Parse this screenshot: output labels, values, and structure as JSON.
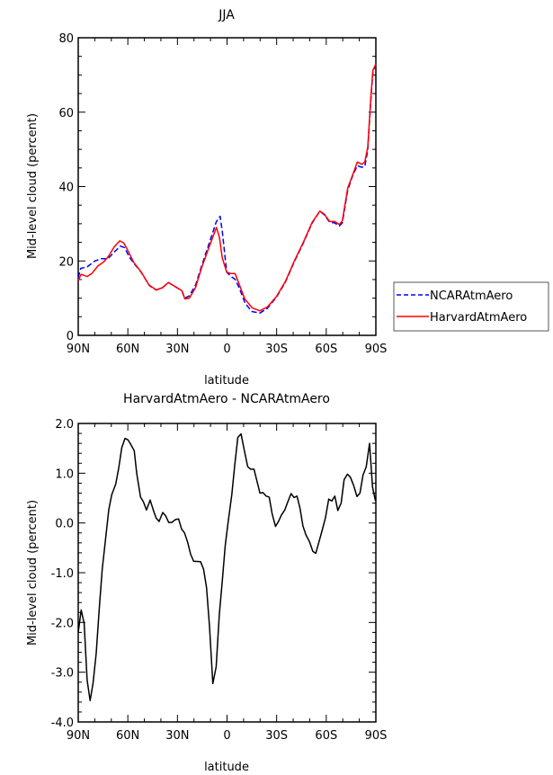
{
  "chart_data": [
    {
      "type": "line",
      "title": "JJA",
      "xlabel": "latitude",
      "ylabel": "Mid-level cloud (percent)",
      "xlim": [
        90,
        -90
      ],
      "ylim": [
        0,
        80
      ],
      "xticks": [
        90,
        60,
        30,
        0,
        -30,
        -60,
        -90
      ],
      "xtick_labels": [
        "90N",
        "60N",
        "30N",
        "0",
        "30S",
        "60S",
        "90S"
      ],
      "yticks": [
        0,
        20,
        40,
        60,
        80
      ],
      "ytick_labels": [
        "0",
        "20",
        "40",
        "60",
        "80"
      ],
      "legend": "outside-right",
      "series": [
        {
          "name": "NCARAtmAero",
          "color": "#0000ff",
          "dash": "dashed",
          "lat": [
            90,
            88.5,
            84.6,
            80,
            76,
            72,
            68,
            64.5,
            62,
            59,
            56,
            52,
            47,
            43,
            39,
            35.5,
            31,
            27.3,
            25.5,
            22.8,
            19,
            15.5,
            11,
            6.5,
            4.2,
            2.9,
            0.2,
            -2.5,
            -5,
            -7.5,
            -11,
            -15,
            -19.8,
            -24.3,
            -29.8,
            -35.2,
            -40.7,
            -46.1,
            -51.5,
            -56.1,
            -58.8,
            -62.1,
            -65.1,
            -67.9,
            -69.7,
            -73,
            -76,
            -78.8,
            -81.5,
            -83.3,
            -85.1,
            -87,
            -88.2,
            -90
          ],
          "values": [
            15.5,
            18.0,
            18.4,
            20.0,
            20.6,
            20.6,
            22.5,
            24.0,
            23.6,
            21.0,
            19.2,
            17.0,
            13.4,
            12.2,
            12.8,
            14.2,
            13.0,
            12.0,
            10.0,
            10.6,
            13.6,
            18.5,
            24.5,
            30.5,
            32.0,
            28.0,
            17.0,
            15.8,
            15.0,
            12.6,
            8.6,
            6.4,
            6.0,
            7.2,
            10.2,
            14.2,
            19.8,
            24.8,
            30.2,
            33.4,
            32.4,
            30.4,
            30.2,
            29.4,
            30.2,
            39.0,
            43.0,
            45.6,
            45.2,
            45.4,
            49.8,
            63.5,
            70.8,
            72.8
          ]
        },
        {
          "name": "HarvardAtmAero",
          "color": "#ff0000",
          "dash": "solid",
          "lat": [
            90,
            88.2,
            84.6,
            81.8,
            78.2,
            74.5,
            71.8,
            68.2,
            64.9,
            62.4,
            60,
            56.4,
            51.8,
            47.3,
            42.8,
            39.1,
            35.5,
            31,
            27.3,
            25.5,
            22.8,
            19.1,
            15.5,
            11,
            6.4,
            4.6,
            2.9,
            0.2,
            -2.5,
            -4.9,
            -7.1,
            -10.7,
            -15.2,
            -19.8,
            -24.3,
            -29.8,
            -35.2,
            -40.7,
            -46.1,
            -51.5,
            -56.1,
            -58.8,
            -62.1,
            -65.1,
            -67.9,
            -69.7,
            -73,
            -76,
            -78.8,
            -81.5,
            -83.3,
            -85.1,
            -87,
            -88.2,
            -90
          ],
          "values": [
            14.8,
            16.4,
            15.8,
            16.6,
            18.6,
            19.8,
            21.2,
            23.8,
            25.4,
            24.8,
            22.8,
            19.6,
            17.0,
            13.6,
            12.2,
            12.8,
            14.2,
            13.0,
            12.0,
            9.8,
            10.0,
            12.8,
            18.0,
            23.6,
            29.0,
            26.4,
            20.8,
            17.0,
            16.6,
            16.6,
            14.0,
            9.8,
            7.4,
            6.6,
            7.6,
            10.4,
            14.4,
            20.0,
            25.0,
            30.4,
            33.4,
            32.6,
            30.6,
            30.6,
            29.8,
            30.8,
            39.6,
            43.2,
            46.6,
            46.0,
            46.6,
            50.6,
            64.3,
            71.2,
            73.0
          ]
        }
      ]
    },
    {
      "type": "line",
      "title": "HarvardAtmAero - NCARAtmAero",
      "xlabel": "latitude",
      "ylabel": "Mid-level cloud (percent)",
      "xlim": [
        90,
        -90
      ],
      "ylim": [
        -4.0,
        2.0
      ],
      "xticks": [
        90,
        60,
        30,
        0,
        -30,
        -60,
        -90
      ],
      "xtick_labels": [
        "90N",
        "60N",
        "30N",
        "0",
        "30S",
        "60S",
        "90S"
      ],
      "yticks": [
        -4,
        -3,
        -2,
        -1,
        0,
        1,
        2
      ],
      "ytick_labels": [
        "-4.0",
        "-3.0",
        "-2.0",
        "-1.0",
        "0.0",
        "1.0",
        "2.0"
      ],
      "series": [
        {
          "name": "difference",
          "color": "#000000",
          "lat": [
            90,
            88.2,
            86.4,
            84.6,
            82.8,
            81.0,
            79.1,
            77.3,
            75.5,
            73.7,
            71.5,
            69.7,
            67.3,
            65.5,
            63.7,
            61.7,
            59.9,
            58.1,
            56.1,
            54.6,
            52.3,
            50.5,
            48.7,
            46.5,
            44.7,
            42.9,
            41.1,
            38.9,
            37.1,
            35.3,
            33.5,
            31.1,
            29.3,
            27.5,
            25.7,
            23.8,
            22.0,
            20.2,
            16.0,
            14.2,
            12.4,
            10.6,
            8.6,
            6.6,
            4.7,
            2.9,
            1.1,
            -0.7,
            -2.9,
            -4.7,
            -6.5,
            -8.5,
            -10.5,
            -12.5,
            -14.3,
            -16.3,
            -18.1,
            -19.9,
            -21.7,
            -23.7,
            -25.5,
            -27.3,
            -29.3,
            -31.1,
            -32.9,
            -34.9,
            -36.7,
            -38.7,
            -40.5,
            -42.3,
            -44.1,
            -45.9,
            -47.7,
            -49.9,
            -51.9,
            -53.7,
            -55.5,
            -57.4,
            -59.5,
            -61.5,
            -63.3,
            -65.2,
            -67.0,
            -69.0,
            -70.8,
            -72.8,
            -74.6,
            -76.6,
            -78.6,
            -80.4,
            -82.2,
            -84.2,
            -86.2,
            -88.0,
            -89.8
          ],
          "values": [
            -2.2,
            -1.75,
            -2.02,
            -3.16,
            -3.57,
            -3.22,
            -2.62,
            -1.72,
            -0.93,
            -0.39,
            0.27,
            0.57,
            0.78,
            1.11,
            1.51,
            1.7,
            1.67,
            1.57,
            1.45,
            0.99,
            0.52,
            0.42,
            0.26,
            0.46,
            0.27,
            0.1,
            0.03,
            0.21,
            0.14,
            0.01,
            0.01,
            0.07,
            0.08,
            -0.12,
            -0.2,
            -0.39,
            -0.63,
            -0.77,
            -0.78,
            -0.93,
            -1.3,
            -2.08,
            -3.23,
            -2.89,
            -1.84,
            -1.17,
            -0.45,
            0.03,
            0.57,
            1.17,
            1.72,
            1.79,
            1.45,
            1.13,
            1.08,
            1.08,
            0.84,
            0.6,
            0.61,
            0.54,
            0.52,
            0.18,
            -0.07,
            0.03,
            0.16,
            0.26,
            0.42,
            0.59,
            0.51,
            0.54,
            0.3,
            -0.06,
            -0.24,
            -0.38,
            -0.57,
            -0.61,
            -0.39,
            -0.16,
            0.1,
            0.48,
            0.44,
            0.54,
            0.25,
            0.4,
            0.87,
            0.98,
            0.92,
            0.75,
            0.53,
            0.6,
            0.96,
            1.13,
            1.6,
            0.72,
            0.44
          ]
        }
      ]
    }
  ]
}
